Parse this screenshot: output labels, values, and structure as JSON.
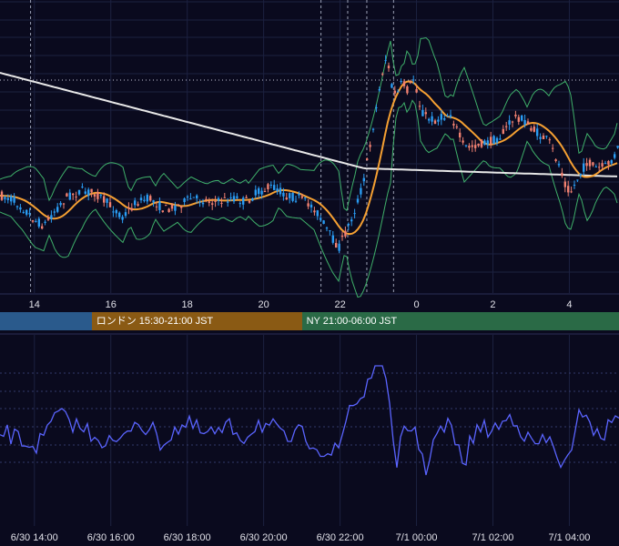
{
  "chart_data": [
    {
      "type": "candlestick",
      "indicators": [
        "bollinger-bands",
        "moving-average-orange",
        "moving-average-white"
      ],
      "x_tick_labels": [
        "14",
        "16",
        "18",
        "20",
        "22",
        "0",
        "2",
        "4"
      ],
      "x_hours": [
        14,
        16,
        18,
        20,
        22,
        24,
        26,
        28
      ],
      "x_range_hours": [
        13.1,
        29.3
      ],
      "session_lines_hours": [
        21.5,
        22.2,
        22.7,
        23.4
      ],
      "grid": true,
      "colors": {
        "up": "#2a9df4",
        "down": "#f08070",
        "bands": "#3fb06a",
        "ma": "#f5a032",
        "long_ma": "#e8e8e8",
        "grid": "#1c2140"
      }
    },
    {
      "type": "line",
      "x_tick_labels": [
        "6/30 14:00",
        "6/30 16:00",
        "6/30 18:00",
        "6/30 20:00",
        "6/30 22:00",
        "7/1 00:00",
        "7/1 02:00",
        "7/1 04:00"
      ],
      "series_color": "#5a64ff",
      "grid": true
    }
  ],
  "sessions": [
    {
      "label": "",
      "color": "#2a5a8c"
    },
    {
      "label": "ロンドン 15:30-21:00 JST",
      "color": "#8a5a14"
    },
    {
      "label": "NY 21:00-06:00 JST",
      "color": "#2a6a46"
    }
  ]
}
